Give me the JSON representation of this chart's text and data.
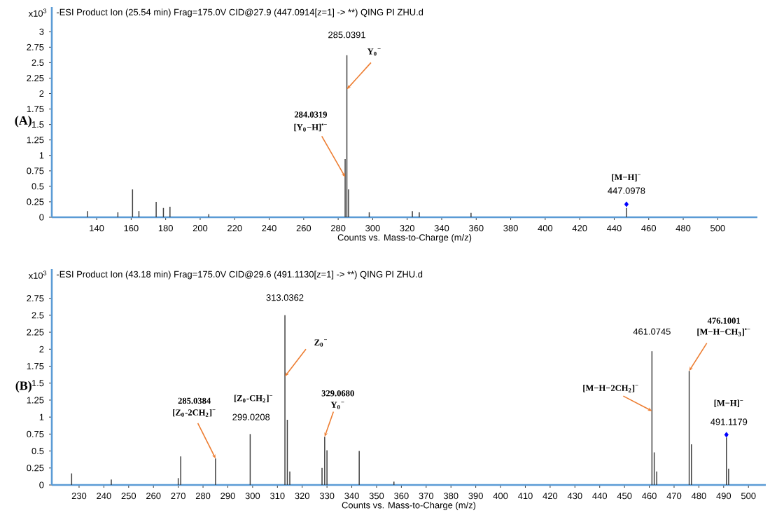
{
  "chart_data": [
    {
      "type": "bar",
      "title": "-ESI Product Ion (25.54 min) Frag=175.0V CID@27.9 (447.0914[z=1] -> **) QING PI ZHU.d",
      "xlabel": "Counts vs. Mass-to-Charge (m/z)",
      "ylabel": "x10$^{3}$",
      "xlim": [
        114,
        523
      ],
      "ylim": [
        0,
        3.4
      ],
      "xticks": [
        140,
        160,
        180,
        200,
        220,
        240,
        260,
        280,
        300,
        320,
        340,
        360,
        380,
        400,
        420,
        440,
        460,
        480,
        500
      ],
      "yticks": [
        0,
        0.25,
        0.5,
        0.75,
        1,
        1.25,
        1.5,
        1.75,
        2,
        2.25,
        2.5,
        2.75,
        3
      ],
      "series": [
        {
          "color": "#404040",
          "x": [
            134.7,
            152.3,
            160.8,
            164.5,
            174.5,
            178.7,
            182.5,
            205,
            284.0319,
            285.0391,
            286,
            298,
            323,
            327,
            357,
            407,
            447.0978
          ],
          "values": [
            0.1,
            0.08,
            0.45,
            0.1,
            0.25,
            0.15,
            0.17,
            0.05,
            0.94,
            2.62,
            0.45,
            0.08,
            0.1,
            0.08,
            0.07,
            null,
            0.15
          ]
        },
        {
          "type": "scatter",
          "color": "#0000ff",
          "marker": "diamond",
          "x": [
            447.0978
          ],
          "values": [
            0.21
          ]
        }
      ],
      "annotations": [
        "(A)",
        {
          "text": "285.0391",
          "x": 285.0391,
          "y": 2.62
        },
        {
          "text": "Y$_{0}$$^{−}$",
          "x": 285.0391,
          "y": 2.07
        },
        "284.0319",
        {
          "text": "[Y$_{0}$−H]$^{•−}$",
          "x": 284.0319,
          "y": 0.65
        },
        {
          "text": "[M−H]$^{−}$",
          "x": 447.0978,
          "y": 0.21
        },
        {
          "text": "447.0978",
          "x": 447.0978,
          "y": 0.21
        }
      ]
    },
    {
      "type": "bar",
      "title": "-ESI Product Ion (43.18 min) Frag=175.0V CID@29.6 (491.1130[z=1] -> **) QING PI ZHU.d",
      "xlabel": "Counts vs. Mass-to-Charge (m/z)",
      "ylabel": "x10$^{3}$",
      "xlim": [
        219,
        507
      ],
      "ylim": [
        0,
        3.18
      ],
      "xticks": [
        230,
        240,
        250,
        260,
        270,
        280,
        290,
        300,
        310,
        320,
        330,
        340,
        350,
        360,
        370,
        380,
        390,
        400,
        410,
        420,
        430,
        440,
        450,
        460,
        470,
        480,
        490,
        500
      ],
      "yticks": [
        0,
        0.25,
        0.5,
        0.75,
        1,
        1.25,
        1.5,
        1.75,
        2,
        2.25,
        2.5,
        2.75
      ],
      "series": [
        {
          "color": "#404040",
          "x": [
            227,
            243,
            270,
            271,
            285.0384,
            299.0208,
            313.0362,
            314,
            315,
            328,
            329.068,
            330,
            343,
            357,
            461.0745,
            462,
            463,
            476.1001,
            477,
            491.1179,
            492
          ],
          "values": [
            0.17,
            0.08,
            0.1,
            0.42,
            0.39,
            0.75,
            2.5,
            0.96,
            0.2,
            0.25,
            0.71,
            0.51,
            0.5,
            0.05,
            1.97,
            0.48,
            0.2,
            1.68,
            0.6,
            0.7,
            0.24
          ]
        },
        {
          "type": "scatter",
          "color": "#0000ff",
          "marker": "diamond",
          "x": [
            491.1179
          ],
          "values": [
            0.74
          ]
        }
      ],
      "annotations": [
        "(B)",
        {
          "text": "313.0362",
          "x": 313.0362,
          "y": 2.5
        },
        {
          "text": "Z$_{0}$$^{−}$",
          "x": 313.0362,
          "y": 1.6
        },
        "285.0384",
        {
          "text": "[Z$_{0}$-2CH$_{2}$]$^{−}$",
          "x": 285.0384,
          "y": 0.39
        },
        "[Z$_{0}$-CH$_{2}$]$^{−}$",
        {
          "text": "299.0208",
          "x": 299.0208,
          "y": 0.75
        },
        "329.0680",
        {
          "text": "Y$_{0}$$^{−}$",
          "x": 329.068,
          "y": 0.71
        },
        {
          "text": "461.0745",
          "x": 461.0745,
          "y": 1.97
        },
        {
          "text": "[M−H−2CH$_{2}$]$^{−}$",
          "x": 461.0745,
          "y": 1.09
        },
        "476.1001",
        {
          "text": "[M−H−CH$_{3}$]$^{•−}$",
          "x": 476.1001,
          "y": 1.68
        },
        "[M−H]$^{−}$",
        {
          "text": "491.1179",
          "x": 491.1179,
          "y": 0.74
        }
      ]
    }
  ]
}
